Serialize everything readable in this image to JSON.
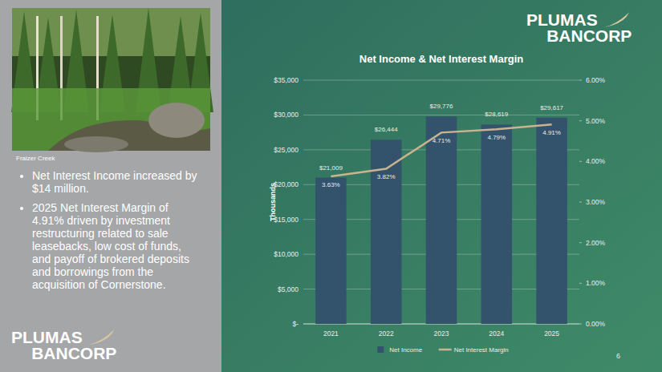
{
  "chart_data": {
    "type": "bar",
    "title": "Net Income & Net Interest Margin",
    "y_label": "Thousands",
    "categories": [
      "2021",
      "2022",
      "2023",
      "2024",
      "2025"
    ],
    "series": [
      {
        "name": "Net Income",
        "type": "bar",
        "color": "#33526c",
        "values": [
          21009,
          26444,
          29776,
          28619,
          29617
        ],
        "value_labels": [
          "$21,009",
          "$26,444",
          "$29,776",
          "$28,619",
          "$29,617"
        ]
      },
      {
        "name": "Net Interest Margin",
        "type": "line",
        "axis": "y2",
        "color": "#c9b48f",
        "values": [
          3.63,
          3.82,
          4.71,
          4.79,
          4.91
        ],
        "value_labels": [
          "3.63%",
          "3.82%",
          "4.71%",
          "4.79%",
          "4.91%"
        ]
      }
    ],
    "ylim": [
      0,
      35000
    ],
    "yticks": [
      {
        "value": 0,
        "label": "$-"
      },
      {
        "value": 5000,
        "label": "$5,000"
      },
      {
        "value": 10000,
        "label": "$10,000"
      },
      {
        "value": 15000,
        "label": "$15,000"
      },
      {
        "value": 20000,
        "label": "$20,000"
      },
      {
        "value": 25000,
        "label": "$25,000"
      },
      {
        "value": 30000,
        "label": "$30,000"
      },
      {
        "value": 35000,
        "label": "$35,000"
      }
    ],
    "y2lim": [
      0,
      6
    ],
    "y2ticks": [
      {
        "value": 0,
        "label": "0.00%"
      },
      {
        "value": 1,
        "label": "1.00%"
      },
      {
        "value": 2,
        "label": "2.00%"
      },
      {
        "value": 3,
        "label": "3.00%"
      },
      {
        "value": 4,
        "label": "4.00%"
      },
      {
        "value": 5,
        "label": "5.00%"
      },
      {
        "value": 6,
        "label": "6.00%"
      }
    ],
    "grid": true,
    "legend": "bottom",
    "data_labels": true
  },
  "slide": {
    "logo_top": "PLUMAS",
    "logo_bottom": "BANCORP",
    "photo_caption": "Fraizer Creek",
    "bullets": [
      "Net Interest Income increased by $14 million.",
      "2025 Net Interest Margin of 4.91% driven by investment restructuring related to sale leasebacks, low cost of funds, and payoff of brokered deposits and borrowings from the acquisition of Cornerstone."
    ],
    "page_number": "6"
  }
}
